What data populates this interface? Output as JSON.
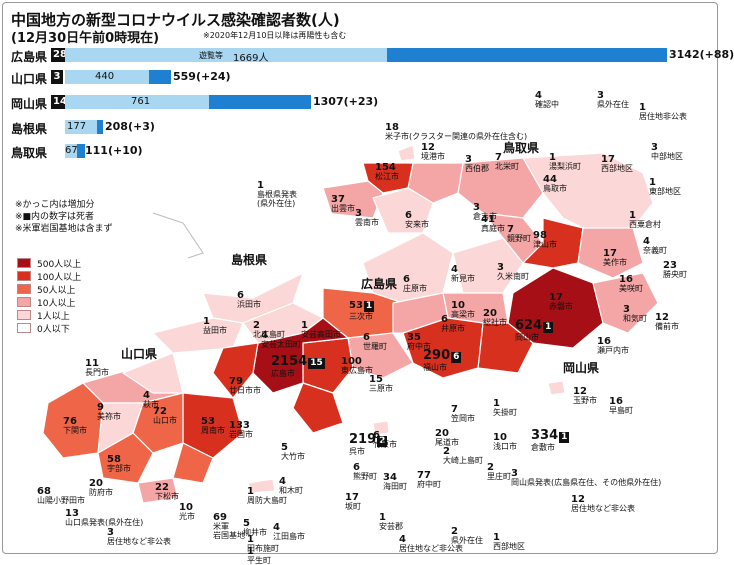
{
  "header": {
    "title": "中国地方の新型コロナウイルス感染確認者数(人)",
    "subtitle": "(12月30日午前0時現在)",
    "note": "※2020年12月10日以降は再陽性も含む"
  },
  "bars": [
    {
      "pref": "広島県",
      "deaths": "28",
      "light": "遊覧等",
      "light_value": "1669人",
      "total": "3142",
      "change": "(+88)"
    },
    {
      "pref": "山口県",
      "deaths": "3",
      "light_value": "440",
      "total": "559",
      "change": "(+24)"
    },
    {
      "pref": "岡山県",
      "deaths": "14",
      "light_value": "761",
      "total": "1307",
      "change": "(+23)"
    },
    {
      "pref": "島根県",
      "light_value": "177",
      "total": "208",
      "change": "(+3)"
    },
    {
      "pref": "鳥取県",
      "light_value": "67",
      "total": "111",
      "change": "(+10)"
    }
  ],
  "notes": [
    "※かっこ内は増加分",
    "※■内の数字は死者",
    "※米軍岩国基地は含まず"
  ],
  "legend": [
    {
      "label": "500人以上",
      "color": "#a50f15"
    },
    {
      "label": "100人以上",
      "color": "#d7301f"
    },
    {
      "label": "50人以上",
      "color": "#ef6548"
    },
    {
      "label": "10人以上",
      "color": "#f4a6a6"
    },
    {
      "label": "1人以上",
      "color": "#fbd7d7"
    },
    {
      "label": "0人以下",
      "color": "#ffffff"
    }
  ],
  "prefectures": {
    "shimane": "島根県",
    "hiroshima": "広島県",
    "yamaguchi": "山口県",
    "okayama": "岡山県",
    "tottori": "鳥取県"
  },
  "labels": [
    {
      "n": "1",
      "t": "島根県発表\n(県外在住)"
    },
    {
      "n": "37",
      "t": "出雲市"
    },
    {
      "n": "154",
      "t": "松江市"
    },
    {
      "n": "3",
      "t": "雲南市"
    },
    {
      "n": "6",
      "t": "安来市"
    },
    {
      "n": "12",
      "t": "境港市"
    },
    {
      "n": "3",
      "t": "西伯郡"
    },
    {
      "n": "7",
      "t": "北栄町"
    },
    {
      "n": "1",
      "t": "湯梨浜町"
    },
    {
      "n": "17",
      "t": "西部地区"
    },
    {
      "n": "3",
      "t": "中部地区"
    },
    {
      "n": "1",
      "t": "東部地区"
    },
    {
      "n": "18",
      "t": "米子市(クラスター関連の県外在住含む)"
    },
    {
      "n": "4",
      "t": "確認中"
    },
    {
      "n": "3",
      "t": "県外在住"
    },
    {
      "n": "1",
      "t": "居住地非公表"
    },
    {
      "n": "3",
      "t": "倉吉市"
    },
    {
      "n": "44",
      "t": "鳥取市"
    },
    {
      "n": "1",
      "t": "西粟倉村"
    },
    {
      "n": "4",
      "t": "奈義町"
    },
    {
      "n": "17",
      "t": "美作市"
    },
    {
      "n": "23",
      "t": "勝央町"
    },
    {
      "n": "16",
      "t": "美咲町"
    },
    {
      "n": "3",
      "t": "和気町"
    },
    {
      "n": "12",
      "t": "備前市"
    },
    {
      "n": "16",
      "t": "瀬戸内市"
    },
    {
      "n": "41",
      "t": "真庭市"
    },
    {
      "n": "7",
      "t": "鏡野町"
    },
    {
      "n": "98",
      "t": "津山市"
    },
    {
      "n": "3",
      "t": "久米南町"
    },
    {
      "n": "4",
      "t": "新見市"
    },
    {
      "n": "17",
      "t": "赤磐市"
    },
    {
      "n": "624",
      "d": "1",
      "t": "岡山市"
    },
    {
      "n": "20",
      "t": "総社市"
    },
    {
      "n": "10",
      "t": "高梁市"
    },
    {
      "n": "6",
      "t": "井原市"
    },
    {
      "n": "6",
      "t": "庄原市"
    },
    {
      "n": "53",
      "d": "1",
      "t": "三次市"
    },
    {
      "n": "6",
      "t": "浜田市"
    },
    {
      "n": "1",
      "t": "益田市"
    },
    {
      "n": "2",
      "t": "北広島町"
    },
    {
      "n": "1",
      "t": "安芸高田市"
    },
    {
      "n": "4",
      "t": "安芸太田町"
    },
    {
      "n": "35",
      "t": "府中市"
    },
    {
      "n": "6",
      "t": "世羅町"
    },
    {
      "n": "290",
      "d": "6",
      "t": "福山市"
    },
    {
      "n": "15",
      "t": "三原市"
    },
    {
      "n": "100",
      "t": "東広島市"
    },
    {
      "n": "2154",
      "d": "15",
      "t": "広島市"
    },
    {
      "n": "79",
      "t": "廿日市市"
    },
    {
      "n": "11",
      "t": "長門市"
    },
    {
      "n": "4",
      "t": "萩市"
    },
    {
      "n": "9",
      "t": "美祢市"
    },
    {
      "n": "76",
      "t": "下関市"
    },
    {
      "n": "72",
      "t": "山口市"
    },
    {
      "n": "53",
      "t": "周南市"
    },
    {
      "n": "133",
      "t": "岩国市"
    },
    {
      "n": "58",
      "t": "宇部市"
    },
    {
      "n": "68",
      "t": "山陽小野田市"
    },
    {
      "n": "20",
      "t": "防府市"
    },
    {
      "n": "22",
      "t": "下松市"
    },
    {
      "n": "13",
      "t": "山口県発表(県外在住)"
    },
    {
      "n": "3",
      "t": "居住地など非公表"
    },
    {
      "n": "10",
      "t": "光市"
    },
    {
      "n": "69",
      "t": "米軍\n岩国基地"
    },
    {
      "n": "5",
      "t": "柳井市"
    },
    {
      "n": "1",
      "t": "田布施町"
    },
    {
      "n": "1",
      "t": "平生町"
    },
    {
      "n": "5",
      "t": "大竹市"
    },
    {
      "n": "4",
      "t": "和木町"
    },
    {
      "n": "1",
      "t": "周防大島町"
    },
    {
      "n": "4",
      "t": "江田島市"
    },
    {
      "n": "219",
      "d": "2",
      "t": "呉市"
    },
    {
      "n": "6",
      "t": "熊野町"
    },
    {
      "n": "34",
      "t": "海田町"
    },
    {
      "n": "77",
      "t": "府中町"
    },
    {
      "n": "17",
      "t": "坂町"
    },
    {
      "n": "1",
      "t": "安芸郡"
    },
    {
      "n": "4",
      "t": "居住地など非公表"
    },
    {
      "n": "2",
      "t": "県外在住"
    },
    {
      "n": "1",
      "t": "西部地区"
    },
    {
      "n": "6",
      "t": "竹原市"
    },
    {
      "n": "20",
      "t": "尾道市"
    },
    {
      "n": "2",
      "t": "大崎上島町"
    },
    {
      "n": "7",
      "t": "笠岡市"
    },
    {
      "n": "1",
      "t": "矢掛町"
    },
    {
      "n": "2",
      "t": "里庄町"
    },
    {
      "n": "10",
      "t": "浅口市"
    },
    {
      "n": "334",
      "d": "1",
      "t": "倉敷市"
    },
    {
      "n": "12",
      "t": "玉野市"
    },
    {
      "n": "16",
      "t": "早島町"
    },
    {
      "n": "3",
      "t": "岡山県発表(広島県在住、その他県外在住)"
    },
    {
      "n": "12",
      "t": "居住地など非公表"
    }
  ]
}
